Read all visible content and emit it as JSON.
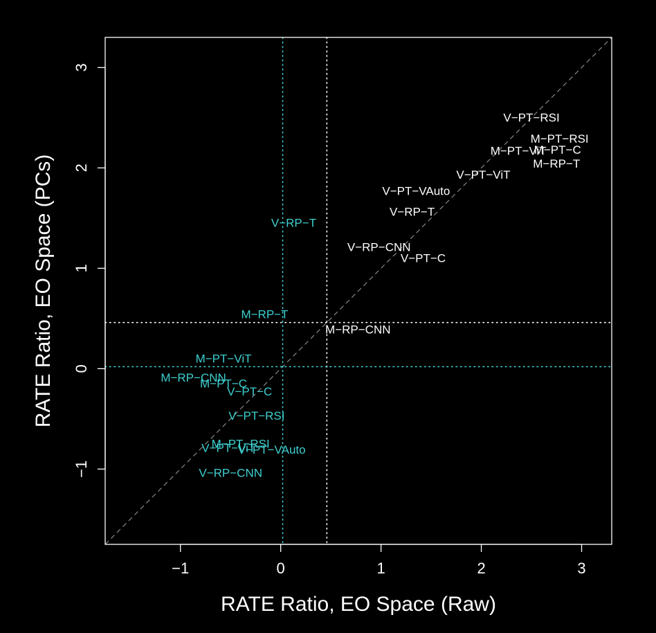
{
  "chart_data": {
    "type": "scatter",
    "xlabel": "RATE Ratio, EO Space (Raw)",
    "ylabel": "RATE Ratio, EO Space (PCs)",
    "xlim": [
      -1.75,
      3.3
    ],
    "ylim": [
      -1.75,
      3.3
    ],
    "xticks": [
      -1,
      0,
      1,
      2,
      3
    ],
    "yticks": [
      -1,
      0,
      1,
      2,
      3
    ],
    "xtick_labels": [
      "−1",
      "0",
      "1",
      "2",
      "3"
    ],
    "ytick_labels": [
      "−1",
      "0",
      "1",
      "2",
      "3"
    ],
    "grid": false,
    "diagonal_reference_line": true,
    "reference_lines": {
      "vertical": [
        {
          "x": 0.02,
          "color": "#3fcfcf"
        },
        {
          "x": 0.46,
          "color": "#ffffff"
        }
      ],
      "horizontal": [
        {
          "y": 0.46,
          "color": "#ffffff"
        },
        {
          "y": 0.02,
          "color": "#3fcfcf"
        }
      ]
    },
    "colors": {
      "background": "#000000",
      "foreground": "#ffffff",
      "cyan": "#3fcfcf",
      "diagonal": "#888888"
    },
    "series": [
      {
        "color": "#ffffff",
        "points": [
          {
            "label": "V−PT−RSI",
            "x": 2.5,
            "y": 2.5
          },
          {
            "label": "M−PT−RSI",
            "x": 2.78,
            "y": 2.29
          },
          {
            "label": "M−PT−ViT",
            "x": 2.37,
            "y": 2.17
          },
          {
            "label": "M−PT−C",
            "x": 2.76,
            "y": 2.18
          },
          {
            "label": "M−RP−T",
            "x": 2.75,
            "y": 2.04
          },
          {
            "label": "V−PT−ViT",
            "x": 2.02,
            "y": 1.93
          },
          {
            "label": "V−PT−VAuto",
            "x": 1.35,
            "y": 1.77
          },
          {
            "label": "V−RP−T",
            "x": 1.31,
            "y": 1.56
          },
          {
            "label": "V−RP−CNN",
            "x": 0.98,
            "y": 1.21
          },
          {
            "label": "V−PT−C",
            "x": 1.42,
            "y": 1.1
          },
          {
            "label": "M−RP−CNN",
            "x": 0.77,
            "y": 0.39
          }
        ]
      },
      {
        "color": "#3fcfcf",
        "points": [
          {
            "label": "V−RP−T",
            "x": 0.13,
            "y": 1.45
          },
          {
            "label": "M−RP−T",
            "x": -0.16,
            "y": 0.54
          },
          {
            "label": "M−PT−ViT",
            "x": -0.57,
            "y": 0.1
          },
          {
            "label": "M−RP−CNN",
            "x": -0.87,
            "y": -0.09
          },
          {
            "label": "M−PT−C",
            "x": -0.57,
            "y": -0.15
          },
          {
            "label": "V−PT−C",
            "x": -0.31,
            "y": -0.23
          },
          {
            "label": "V−PT−RSI",
            "x": -0.24,
            "y": -0.47
          },
          {
            "label": "M−PT−RSI",
            "x": -0.4,
            "y": -0.75
          },
          {
            "label": "V−PT−ViT",
            "x": -0.52,
            "y": -0.79
          },
          {
            "label": "V−PT−VAuto",
            "x": -0.09,
            "y": -0.81
          },
          {
            "label": "V−RP−CNN",
            "x": -0.5,
            "y": -1.04
          }
        ]
      }
    ]
  }
}
